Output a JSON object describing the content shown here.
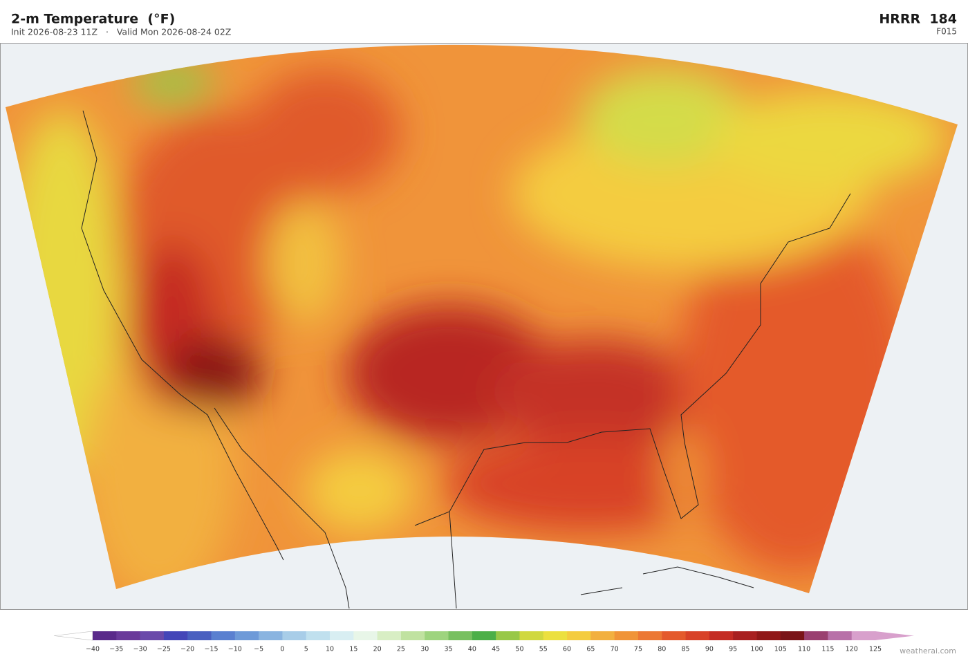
{
  "header": {
    "title": "2-m Temperature  (°F)",
    "subtitle": "Init 2026-08-23 11Z   ·   Valid Mon 2026-08-24 02Z",
    "model": "HRRR  184",
    "forecast_hour": "F015"
  },
  "colorbar": {
    "ticks": [
      {
        "value": -40,
        "label": "−40"
      },
      {
        "value": -35,
        "label": "−35"
      },
      {
        "value": -30,
        "label": "−30"
      },
      {
        "value": -25,
        "label": "−25"
      },
      {
        "value": -20,
        "label": "−20"
      },
      {
        "value": -15,
        "label": "−15"
      },
      {
        "value": -10,
        "label": "−10"
      },
      {
        "value": -5,
        "label": "−5"
      },
      0,
      5,
      10,
      15,
      20,
      25,
      30,
      35,
      40,
      45,
      50,
      55,
      60,
      65,
      70,
      75,
      80,
      85,
      90,
      95,
      100,
      105,
      110,
      115,
      120,
      125
    ],
    "colors": [
      "#5a2a8a",
      "#6a3a9a",
      "#6a4aaa",
      "#4446b8",
      "#4a60c0",
      "#5a80d0",
      "#6e9ad8",
      "#8ab4e0",
      "#a8cde8",
      "#c0e0ee",
      "#d8eef2",
      "#e8f6e8",
      "#d8eec4",
      "#c0e2a0",
      "#9ed47e",
      "#78c060",
      "#4caf48",
      "#98c848",
      "#d0d840",
      "#ece040",
      "#f4cc40",
      "#f2b040",
      "#f09438",
      "#ec7834",
      "#e45a2c",
      "#d84228",
      "#c42c24",
      "#a82020",
      "#901818",
      "#7a1418",
      "#9a4070",
      "#b870a8",
      "#d8a0cc"
    ],
    "under_color": "#ffffff",
    "over_color": "#d8a0cc"
  },
  "credit": "weatherai.com"
}
